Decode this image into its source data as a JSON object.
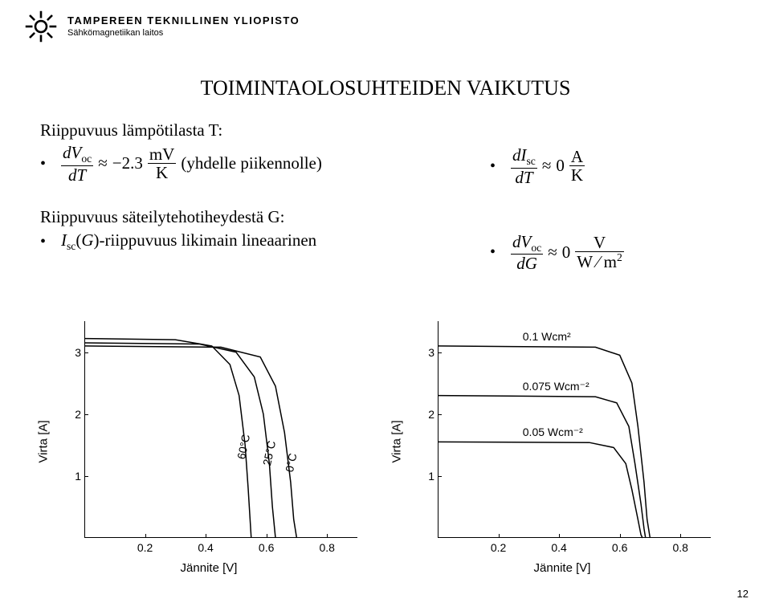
{
  "header": {
    "institution": "TAMPEREEN TEKNILLINEN YLIOPISTO",
    "department": "Sähkömagnetiikan laitos"
  },
  "title": "TOIMINTAOLOSUHTEIDEN VAIKUTUS",
  "temperature": {
    "heading": "Riippuvuus lämpötilasta T:",
    "eq_left": {
      "num": "dV",
      "num_sub": "oc",
      "den": "dT",
      "approx": "≈",
      "value": "−2.3",
      "unit_num": "mV",
      "unit_den": "K",
      "note": "(yhdelle piikennolle)"
    },
    "eq_right": {
      "num": "dI",
      "num_sub": "sc",
      "den": "dT",
      "approx": "≈",
      "value": "0",
      "unit_num": "A",
      "unit_den": "K"
    }
  },
  "irradiance": {
    "heading": "Riippuvuus säteilytehotiheydestä G:",
    "bullet_left": "I_sc(G)-riippuvuus likimain lineaarinen",
    "eq_right": {
      "num": "dV",
      "num_sub": "oc",
      "den": "dG",
      "approx": "≈",
      "value": "0",
      "unit_num": "V",
      "unit_den": "W ⁄ m",
      "unit_den_sup": "2"
    }
  },
  "chart_left": {
    "type": "line",
    "xlabel": "Jännite [V]",
    "ylabel": "Virta [A]",
    "xlim": [
      0,
      0.9
    ],
    "ylim": [
      0,
      3.5
    ],
    "xticks": [
      0.2,
      0.4,
      0.6,
      0.8
    ],
    "yticks": [
      1,
      2,
      3
    ],
    "line_color": "#000000",
    "line_width": 1.5,
    "background": "#ffffff",
    "series": [
      {
        "label": "60°C",
        "label_rotated": true,
        "points": [
          [
            0,
            3.22
          ],
          [
            0.3,
            3.2
          ],
          [
            0.42,
            3.1
          ],
          [
            0.48,
            2.8
          ],
          [
            0.51,
            2.3
          ],
          [
            0.53,
            1.5
          ],
          [
            0.54,
            0.8
          ],
          [
            0.55,
            0
          ]
        ]
      },
      {
        "label": "25°C",
        "label_rotated": true,
        "points": [
          [
            0,
            3.15
          ],
          [
            0.38,
            3.13
          ],
          [
            0.5,
            3.0
          ],
          [
            0.56,
            2.6
          ],
          [
            0.59,
            2.0
          ],
          [
            0.61,
            1.2
          ],
          [
            0.62,
            0.5
          ],
          [
            0.63,
            0
          ]
        ]
      },
      {
        "label": "0°C",
        "label_rotated": true,
        "points": [
          [
            0,
            3.1
          ],
          [
            0.45,
            3.08
          ],
          [
            0.58,
            2.92
          ],
          [
            0.63,
            2.45
          ],
          [
            0.66,
            1.7
          ],
          [
            0.68,
            0.9
          ],
          [
            0.69,
            0.3
          ],
          [
            0.7,
            0
          ]
        ]
      }
    ]
  },
  "chart_right": {
    "type": "line",
    "xlabel": "Jännite [V]",
    "ylabel": "Virta [A]",
    "xlim": [
      0,
      0.9
    ],
    "ylim": [
      0,
      3.5
    ],
    "xticks": [
      0.2,
      0.4,
      0.6,
      0.8
    ],
    "yticks": [
      1,
      2,
      3
    ],
    "line_color": "#000000",
    "line_width": 1.5,
    "background": "#ffffff",
    "series": [
      {
        "label": "0.1 Wcm²",
        "plateau": 3.1,
        "points": [
          [
            0,
            3.1
          ],
          [
            0.52,
            3.08
          ],
          [
            0.6,
            2.95
          ],
          [
            0.64,
            2.5
          ],
          [
            0.66,
            1.8
          ],
          [
            0.68,
            0.9
          ],
          [
            0.69,
            0.3
          ],
          [
            0.7,
            0
          ]
        ]
      },
      {
        "label": "0.075 Wcm⁻²",
        "plateau": 2.3,
        "points": [
          [
            0,
            2.3
          ],
          [
            0.52,
            2.28
          ],
          [
            0.59,
            2.18
          ],
          [
            0.63,
            1.8
          ],
          [
            0.65,
            1.2
          ],
          [
            0.67,
            0.55
          ],
          [
            0.68,
            0.15
          ],
          [
            0.685,
            0
          ]
        ]
      },
      {
        "label": "0.05 Wcm⁻²",
        "plateau": 1.55,
        "points": [
          [
            0,
            1.55
          ],
          [
            0.5,
            1.54
          ],
          [
            0.58,
            1.46
          ],
          [
            0.62,
            1.2
          ],
          [
            0.64,
            0.78
          ],
          [
            0.66,
            0.3
          ],
          [
            0.67,
            0.05
          ],
          [
            0.675,
            0
          ]
        ]
      }
    ]
  },
  "page_number": "12",
  "colors": {
    "text": "#000000",
    "bg": "#ffffff"
  }
}
